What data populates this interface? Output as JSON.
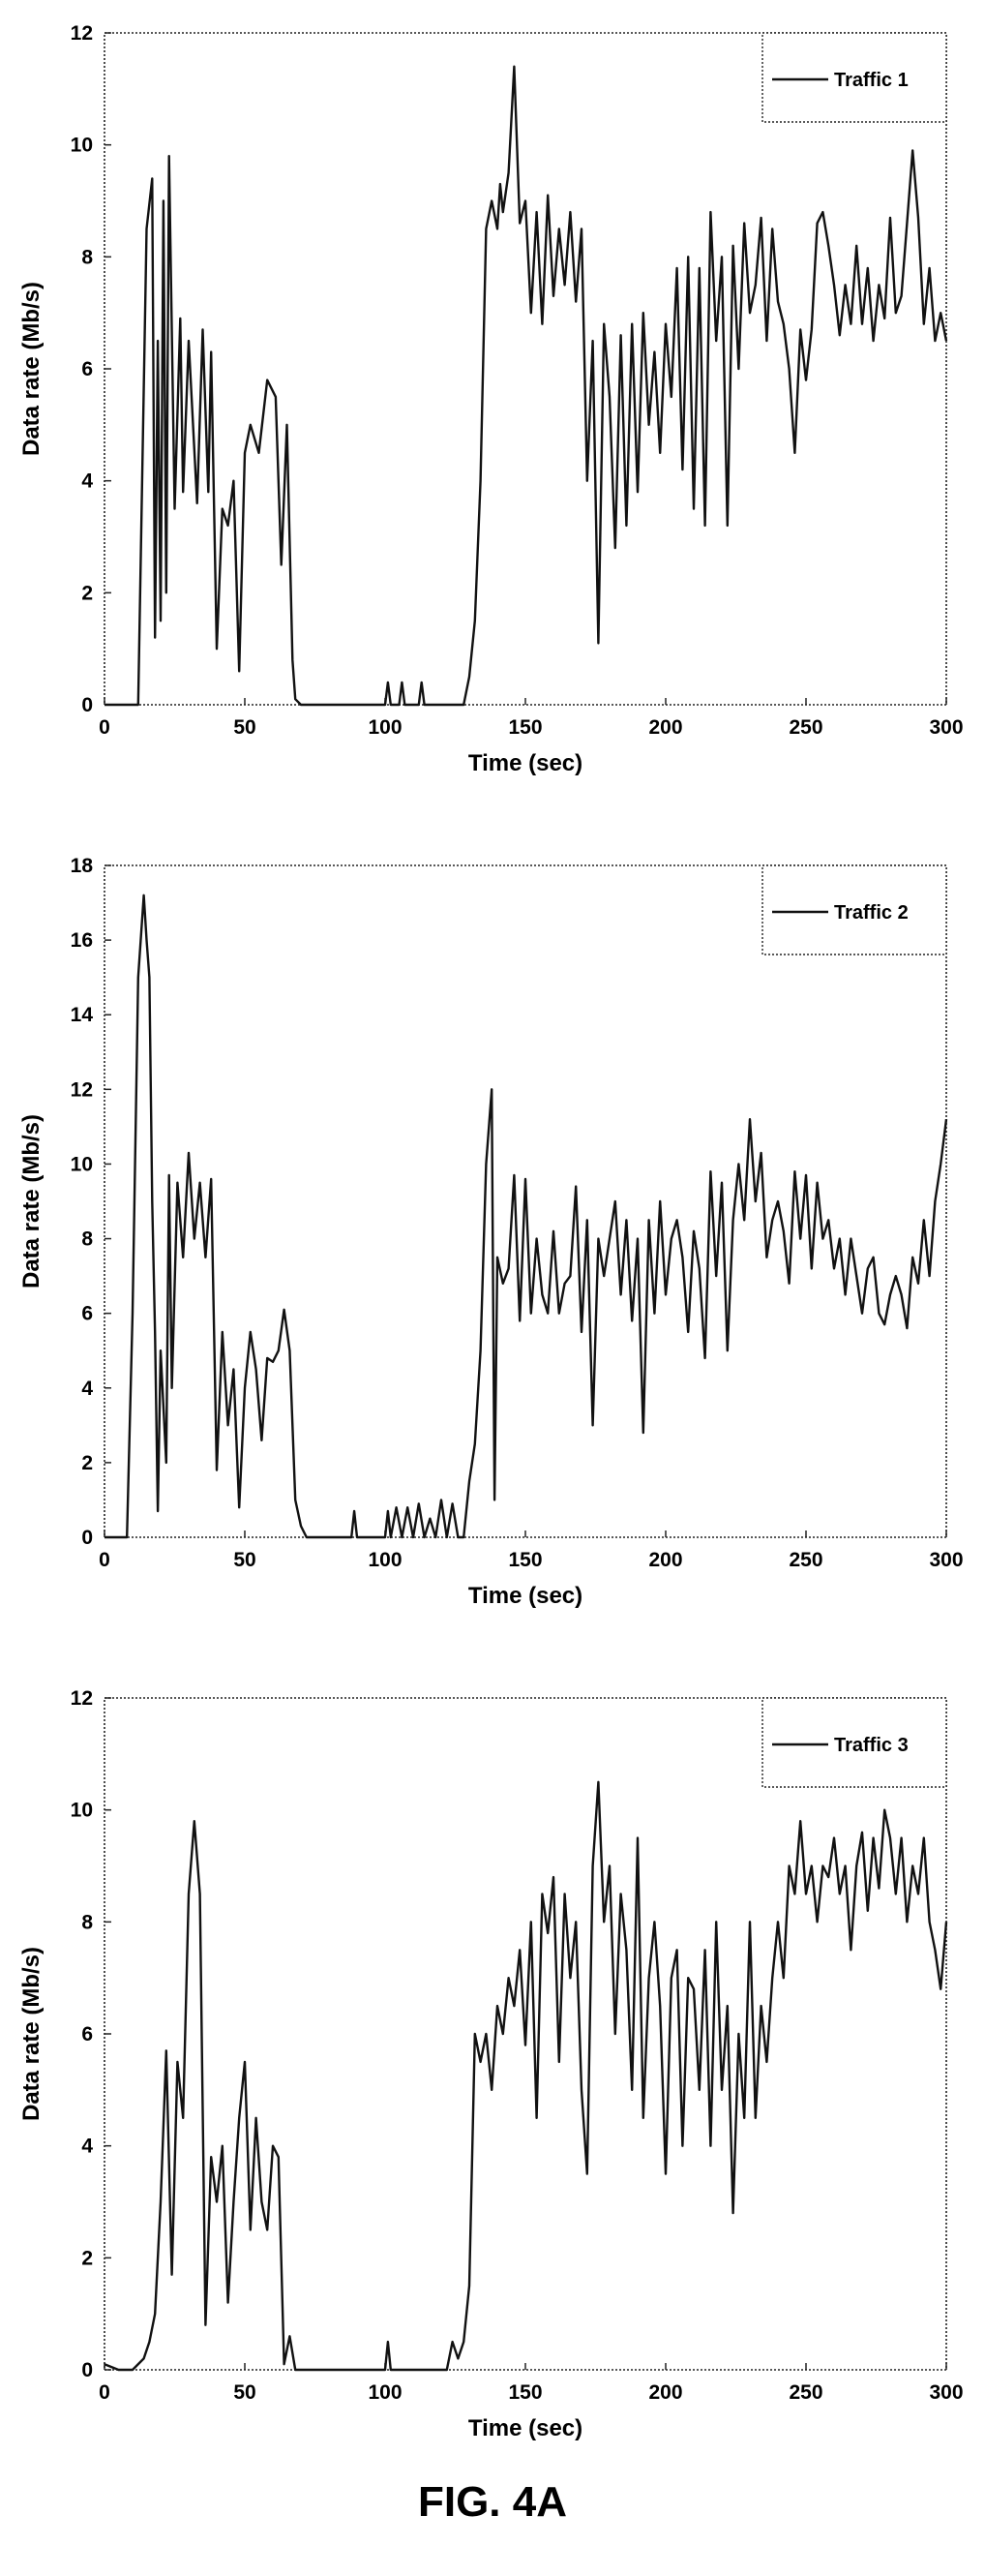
{
  "figure": {
    "caption": "FIG. 4A"
  },
  "chart_data": [
    {
      "type": "line",
      "xlabel": "Time (sec)",
      "ylabel": "Data rate (Mb/s)",
      "xlim": [
        0,
        300
      ],
      "ylim": [
        0,
        12
      ],
      "xticks": [
        "0",
        "50",
        "100",
        "150",
        "200",
        "250",
        "300"
      ],
      "yticks": [
        "0",
        "2",
        "4",
        "6",
        "8",
        "10",
        "12"
      ],
      "grid": true,
      "legend": "top-right",
      "series": [
        {
          "name": "Traffic 1",
          "x": [
            0,
            12,
            15,
            17,
            18,
            19,
            20,
            21,
            22,
            23,
            25,
            27,
            28,
            30,
            33,
            35,
            37,
            38,
            40,
            42,
            44,
            46,
            48,
            50,
            52,
            55,
            58,
            61,
            63,
            65,
            67,
            68,
            70,
            72,
            74,
            100,
            101,
            102,
            105,
            106,
            107,
            112,
            113,
            114,
            128,
            130,
            132,
            134,
            136,
            138,
            140,
            141,
            142,
            144,
            146,
            148,
            150,
            152,
            154,
            156,
            158,
            160,
            162,
            164,
            166,
            168,
            170,
            172,
            174,
            176,
            178,
            180,
            182,
            184,
            186,
            188,
            190,
            192,
            194,
            196,
            198,
            200,
            202,
            204,
            206,
            208,
            210,
            212,
            214,
            216,
            218,
            220,
            222,
            224,
            226,
            228,
            230,
            232,
            234,
            236,
            238,
            240,
            242,
            244,
            246,
            248,
            250,
            252,
            254,
            256,
            258,
            260,
            262,
            264,
            266,
            268,
            270,
            272,
            274,
            276,
            278,
            280,
            282,
            284,
            286,
            288,
            290,
            292,
            294,
            296,
            298,
            300
          ],
          "y": [
            0,
            0,
            8.5,
            9.4,
            1.2,
            6.5,
            1.5,
            9.0,
            2.0,
            9.8,
            3.5,
            6.9,
            3.8,
            6.5,
            3.6,
            6.7,
            3.8,
            6.3,
            1.0,
            3.5,
            3.2,
            4.0,
            0.6,
            4.5,
            5.0,
            4.5,
            5.8,
            5.5,
            2.5,
            5.0,
            0.8,
            0.1,
            0,
            0,
            0,
            0,
            0.4,
            0,
            0,
            0.4,
            0,
            0,
            0.4,
            0,
            0,
            0.5,
            1.5,
            4.0,
            8.5,
            9.0,
            8.5,
            9.3,
            8.8,
            9.5,
            11.4,
            8.6,
            9.0,
            7.0,
            8.8,
            6.8,
            9.1,
            7.3,
            8.5,
            7.5,
            8.8,
            7.2,
            8.5,
            4.0,
            6.5,
            1.1,
            6.8,
            5.5,
            2.8,
            6.6,
            3.2,
            6.8,
            3.8,
            7.0,
            5.0,
            6.3,
            4.5,
            6.8,
            5.5,
            7.8,
            4.2,
            8.0,
            3.5,
            7.8,
            3.2,
            8.8,
            6.5,
            8.0,
            3.2,
            8.2,
            6.0,
            8.6,
            7.0,
            7.5,
            8.7,
            6.5,
            8.5,
            7.2,
            6.8,
            6.0,
            4.5,
            6.7,
            5.8,
            6.7,
            8.6,
            8.8,
            8.2,
            7.5,
            6.6,
            7.5,
            6.8,
            8.2,
            6.8,
            7.8,
            6.5,
            7.5,
            6.9,
            8.7,
            7.0,
            7.3,
            8.6,
            9.9,
            8.7,
            6.8,
            7.8,
            6.5,
            7.0,
            6.5
          ]
        }
      ]
    },
    {
      "type": "line",
      "xlabel": "Time (sec)",
      "ylabel": "Data rate (Mb/s)",
      "xlim": [
        0,
        300
      ],
      "ylim": [
        0,
        18
      ],
      "xticks": [
        "0",
        "50",
        "100",
        "150",
        "200",
        "250",
        "300"
      ],
      "yticks": [
        "0",
        "2",
        "4",
        "6",
        "8",
        "10",
        "12",
        "14",
        "16",
        "18"
      ],
      "grid": true,
      "legend": "top-right",
      "series": [
        {
          "name": "Traffic 2",
          "x": [
            0,
            8,
            10,
            12,
            14,
            15,
            16,
            17,
            18,
            19,
            20,
            22,
            23,
            24,
            26,
            28,
            30,
            32,
            34,
            36,
            38,
            40,
            42,
            44,
            46,
            48,
            50,
            52,
            54,
            56,
            58,
            60,
            62,
            64,
            66,
            68,
            70,
            72,
            74,
            88,
            89,
            90,
            100,
            101,
            102,
            104,
            106,
            108,
            110,
            112,
            114,
            116,
            118,
            120,
            122,
            124,
            126,
            128,
            130,
            132,
            134,
            136,
            138,
            139,
            140,
            142,
            144,
            146,
            148,
            150,
            152,
            154,
            156,
            158,
            160,
            162,
            164,
            166,
            168,
            170,
            172,
            174,
            176,
            178,
            180,
            182,
            184,
            186,
            188,
            190,
            192,
            194,
            196,
            198,
            200,
            202,
            204,
            206,
            208,
            210,
            212,
            214,
            216,
            218,
            220,
            222,
            224,
            226,
            228,
            230,
            232,
            234,
            236,
            238,
            240,
            242,
            244,
            246,
            248,
            250,
            252,
            254,
            256,
            258,
            260,
            262,
            264,
            266,
            268,
            270,
            272,
            274,
            276,
            278,
            280,
            282,
            284,
            286,
            288,
            290,
            292,
            294,
            296,
            298,
            300
          ],
          "y": [
            0,
            0,
            6.0,
            15.0,
            17.2,
            16.0,
            15.0,
            9.0,
            5.5,
            0.7,
            5.0,
            2.0,
            9.7,
            4.0,
            9.5,
            7.5,
            10.3,
            8.0,
            9.5,
            7.5,
            9.6,
            1.8,
            5.5,
            3.0,
            4.5,
            0.8,
            4.0,
            5.5,
            4.5,
            2.6,
            4.8,
            4.7,
            5.0,
            6.1,
            5.0,
            1.0,
            0.3,
            0,
            0,
            0,
            0.7,
            0,
            0,
            0.7,
            0,
            0.8,
            0,
            0.8,
            0,
            0.9,
            0,
            0.5,
            0,
            1.0,
            0,
            0.9,
            0,
            0,
            1.5,
            2.5,
            5.0,
            10.0,
            12.0,
            1.0,
            7.5,
            6.8,
            7.2,
            9.7,
            5.8,
            9.6,
            6.0,
            8.0,
            6.5,
            6.0,
            8.2,
            6.0,
            6.8,
            7.0,
            9.4,
            5.5,
            8.5,
            3.0,
            8.0,
            7.0,
            8.0,
            9.0,
            6.5,
            8.5,
            5.8,
            8.0,
            2.8,
            8.5,
            6.0,
            9.0,
            6.5,
            8.0,
            8.5,
            7.5,
            5.5,
            8.2,
            7.2,
            4.8,
            9.8,
            7.0,
            9.5,
            5.0,
            8.5,
            10.0,
            8.5,
            11.2,
            9.0,
            10.3,
            7.5,
            8.5,
            9.0,
            8.2,
            6.8,
            9.8,
            8.0,
            9.7,
            7.2,
            9.5,
            8.0,
            8.5,
            7.2,
            8.0,
            6.5,
            8.0,
            7.0,
            6.0,
            7.2,
            7.5,
            6.0,
            5.7,
            6.5,
            7.0,
            6.5,
            5.6,
            7.5,
            6.8,
            8.5,
            7.0,
            9.0,
            10.0,
            11.2
          ]
        }
      ]
    },
    {
      "type": "line",
      "xlabel": "Time (sec)",
      "ylabel": "Data rate (Mb/s)",
      "xlim": [
        0,
        300
      ],
      "ylim": [
        0,
        12
      ],
      "xticks": [
        "0",
        "50",
        "100",
        "150",
        "200",
        "250",
        "300"
      ],
      "yticks": [
        "0",
        "2",
        "4",
        "6",
        "8",
        "10",
        "12"
      ],
      "grid": true,
      "legend": "top-right",
      "series": [
        {
          "name": "Traffic 3",
          "x": [
            0,
            5,
            10,
            14,
            16,
            18,
            20,
            22,
            24,
            26,
            28,
            30,
            32,
            34,
            36,
            38,
            40,
            42,
            44,
            46,
            48,
            50,
            52,
            54,
            56,
            58,
            60,
            62,
            64,
            66,
            68,
            70,
            72,
            100,
            101,
            102,
            122,
            124,
            126,
            128,
            130,
            132,
            134,
            136,
            138,
            140,
            142,
            144,
            146,
            148,
            150,
            152,
            154,
            156,
            158,
            160,
            162,
            164,
            166,
            168,
            170,
            172,
            174,
            176,
            178,
            180,
            182,
            184,
            186,
            188,
            190,
            192,
            194,
            196,
            198,
            200,
            202,
            204,
            206,
            208,
            210,
            212,
            214,
            216,
            218,
            220,
            222,
            224,
            226,
            228,
            230,
            232,
            234,
            236,
            238,
            240,
            242,
            244,
            246,
            248,
            250,
            252,
            254,
            256,
            258,
            260,
            262,
            264,
            266,
            268,
            270,
            272,
            274,
            276,
            278,
            280,
            282,
            284,
            286,
            288,
            290,
            292,
            294,
            296,
            298,
            300
          ],
          "y": [
            0.1,
            0,
            0,
            0.2,
            0.5,
            1.0,
            3.0,
            5.7,
            1.7,
            5.5,
            4.5,
            8.5,
            9.8,
            8.5,
            0.8,
            3.8,
            3.0,
            4.0,
            1.2,
            3.0,
            4.5,
            5.5,
            2.5,
            4.5,
            3.0,
            2.5,
            4.0,
            3.8,
            0.1,
            0.6,
            0,
            0,
            0,
            0,
            0.5,
            0,
            0,
            0.5,
            0.2,
            0.5,
            1.5,
            6.0,
            5.5,
            6.0,
            5.0,
            6.5,
            6.0,
            7.0,
            6.5,
            7.5,
            5.8,
            8.0,
            4.5,
            8.5,
            7.8,
            8.8,
            5.5,
            8.5,
            7.0,
            8.0,
            5.0,
            3.5,
            9.0,
            10.5,
            8.0,
            9.0,
            6.0,
            8.5,
            7.5,
            5.0,
            9.5,
            4.5,
            7.0,
            8.0,
            6.5,
            3.5,
            7.0,
            7.5,
            4.0,
            7.0,
            6.8,
            5.0,
            7.5,
            4.0,
            8.0,
            5.0,
            6.5,
            2.8,
            6.0,
            4.5,
            8.0,
            4.5,
            6.5,
            5.5,
            7.0,
            8.0,
            7.0,
            9.0,
            8.5,
            9.8,
            8.5,
            9.0,
            8.0,
            9.0,
            8.8,
            9.5,
            8.5,
            9.0,
            7.5,
            9.0,
            9.6,
            8.2,
            9.5,
            8.6,
            10.0,
            9.5,
            8.5,
            9.5,
            8.0,
            9.0,
            8.5,
            9.5,
            8.0,
            7.5,
            6.8,
            8.0
          ]
        }
      ]
    }
  ]
}
